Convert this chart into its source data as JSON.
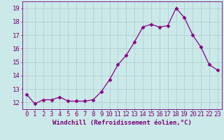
{
  "x": [
    0,
    1,
    2,
    3,
    4,
    5,
    6,
    7,
    8,
    9,
    10,
    11,
    12,
    13,
    14,
    15,
    16,
    17,
    18,
    19,
    20,
    21,
    22,
    23
  ],
  "y": [
    12.6,
    11.9,
    12.2,
    12.2,
    12.4,
    12.1,
    12.1,
    12.1,
    12.2,
    12.8,
    13.7,
    14.8,
    15.5,
    16.5,
    17.6,
    17.8,
    17.6,
    17.7,
    19.0,
    18.3,
    17.0,
    16.1,
    14.8,
    14.4
  ],
  "line_color": "#880088",
  "marker": "D",
  "marker_size": 2.5,
  "bg_color": "#cce9e9",
  "grid_color": "#aacccc",
  "xlabel": "Windchill (Refroidissement éolien,°C)",
  "ylabel_ticks": [
    12,
    13,
    14,
    15,
    16,
    17,
    18,
    19
  ],
  "xlim": [
    -0.5,
    23.5
  ],
  "ylim": [
    11.5,
    19.5
  ],
  "xlabel_fontsize": 6.5,
  "tick_fontsize": 6.5,
  "label_color": "#770077"
}
